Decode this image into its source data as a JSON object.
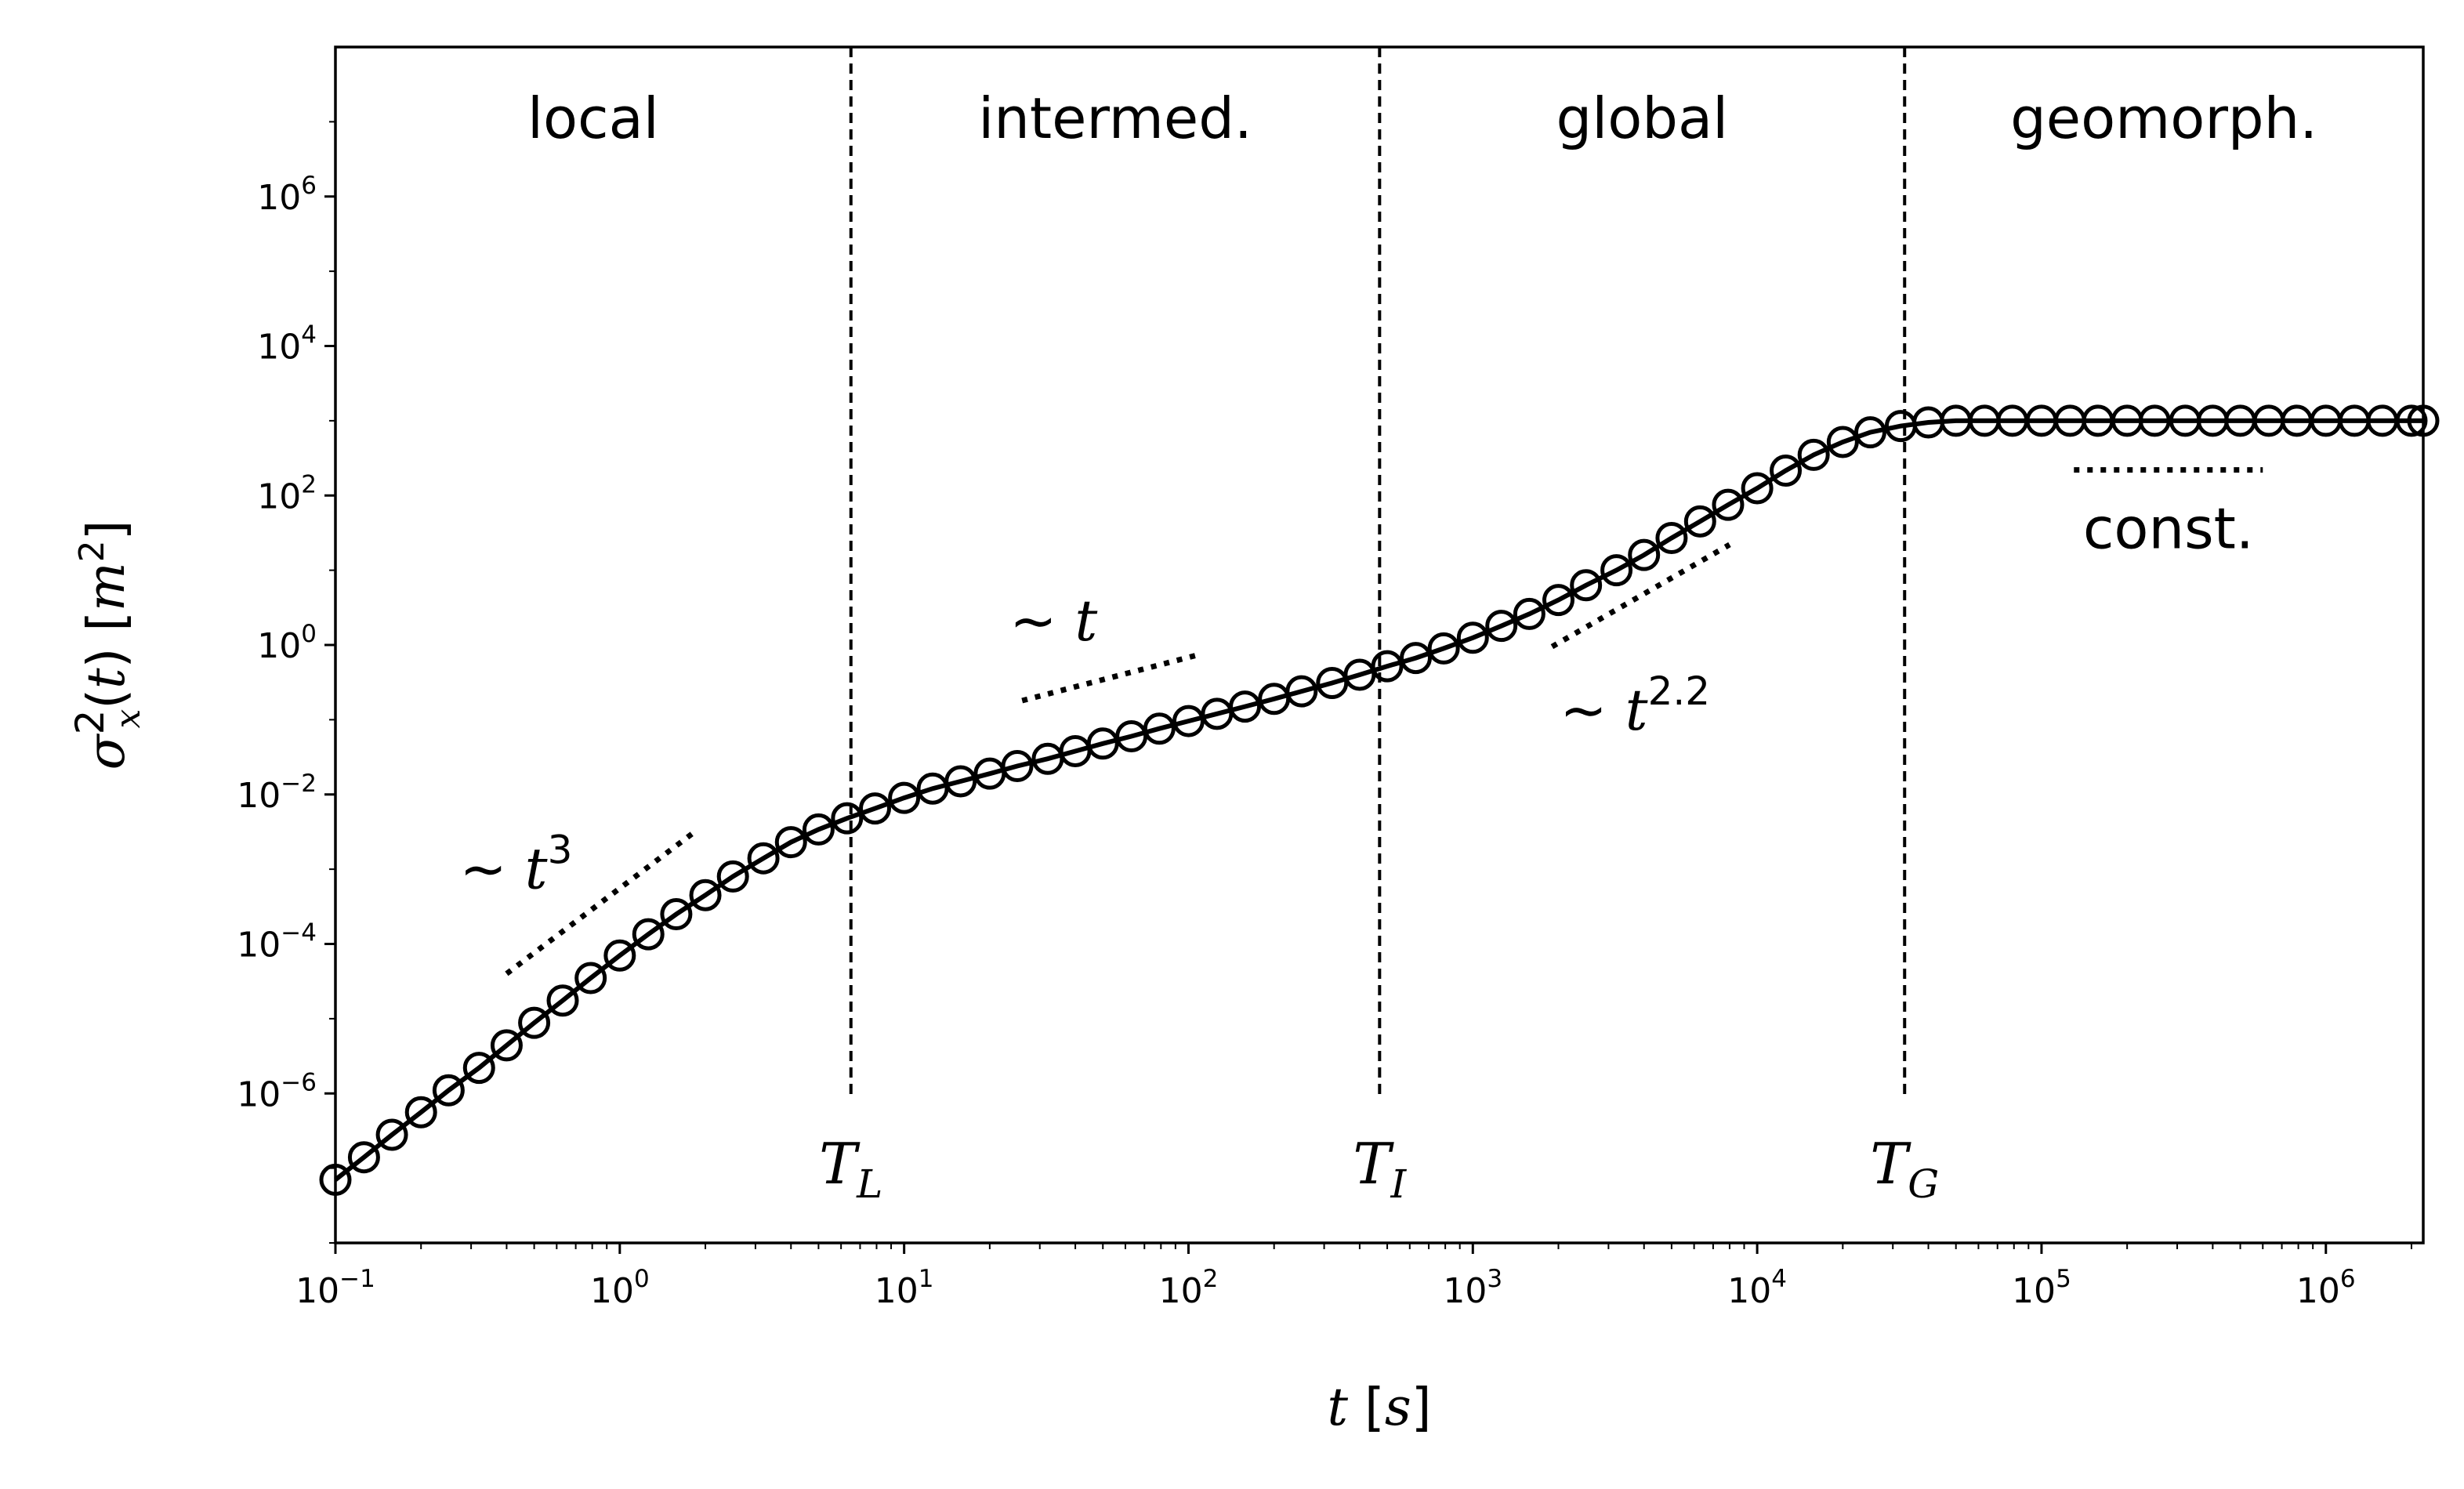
{
  "chart_data": {
    "type": "scatter",
    "x_scale": "log",
    "y_scale": "log",
    "xlim": [
      0.1,
      2200000
    ],
    "ylim": [
      1e-08,
      100000000.0
    ],
    "xticks": [
      {
        "base": "10",
        "exp": "−1"
      },
      {
        "base": "10",
        "exp": "0"
      },
      {
        "base": "10",
        "exp": "1"
      },
      {
        "base": "10",
        "exp": "2"
      },
      {
        "base": "10",
        "exp": "3"
      },
      {
        "base": "10",
        "exp": "4"
      },
      {
        "base": "10",
        "exp": "5"
      },
      {
        "base": "10",
        "exp": "6"
      }
    ],
    "xtick_values": [
      0.1,
      1,
      10,
      100,
      1000,
      10000,
      100000,
      1000000
    ],
    "yticks": [
      {
        "base": "10",
        "exp": "−6"
      },
      {
        "base": "10",
        "exp": "−4"
      },
      {
        "base": "10",
        "exp": "−2"
      },
      {
        "base": "10",
        "exp": "0"
      },
      {
        "base": "10",
        "exp": "2"
      },
      {
        "base": "10",
        "exp": "4"
      },
      {
        "base": "10",
        "exp": "6"
      }
    ],
    "ytick_values": [
      1e-06,
      0.0001,
      0.01,
      1,
      100,
      10000,
      1000000
    ],
    "xlabel": {
      "var": "t",
      "unit": "s"
    },
    "ylabel": {
      "var": "σ",
      "sup": "2",
      "sub": "x",
      "arg": "(t)",
      "unit": "m",
      "unit_sup": "2"
    },
    "grid": false,
    "regions": [
      {
        "label": "local"
      },
      {
        "label": "intermed."
      },
      {
        "label": "global"
      },
      {
        "label": "geomorph."
      }
    ],
    "vlines": [
      {
        "x": 6.5,
        "label_main": "T",
        "label_sub": "L"
      },
      {
        "x": 470,
        "label_main": "T",
        "label_sub": "I"
      },
      {
        "x": 33000,
        "label_main": "T",
        "label_sub": "G"
      }
    ],
    "series": [
      {
        "style": "solid-line-with-open-circles",
        "x": [
          0.1,
          0.126,
          0.158,
          0.2,
          0.25,
          0.32,
          0.4,
          0.5,
          0.63,
          0.79,
          1.0,
          1.26,
          1.58,
          2.0,
          2.5,
          3.2,
          4.0,
          5.0,
          6.3,
          7.9,
          10,
          12.6,
          15.8,
          20,
          25,
          32,
          40,
          50,
          63,
          79,
          100,
          126,
          158,
          200,
          250,
          320,
          400,
          500,
          630,
          790,
          1000,
          1260,
          1580,
          2000,
          2500,
          3200,
          4000,
          5000,
          6300,
          7900,
          10000,
          12600,
          15800,
          20000,
          25000,
          32000,
          40000,
          50000,
          63000,
          79000,
          100000,
          126000,
          158000,
          200000,
          250000,
          320000,
          400000,
          500000,
          630000,
          790000,
          1000000,
          1260000,
          1580000,
          2000000,
          2200000
        ],
        "y": [
          7e-08,
          1.4e-07,
          2.8e-07,
          5.6e-07,
          1.1e-06,
          2.2e-06,
          4.4e-06,
          8.8e-06,
          1.75e-05,
          3.5e-05,
          7e-05,
          0.000135,
          0.00025,
          0.00045,
          0.0008,
          0.0014,
          0.0023,
          0.0034,
          0.0048,
          0.0065,
          0.009,
          0.012,
          0.015,
          0.019,
          0.024,
          0.03,
          0.038,
          0.048,
          0.06,
          0.076,
          0.096,
          0.12,
          0.15,
          0.19,
          0.24,
          0.31,
          0.4,
          0.52,
          0.67,
          0.9,
          1.25,
          1.8,
          2.6,
          4.0,
          6.3,
          10,
          16,
          27,
          45,
          75,
          125,
          215,
          350,
          520,
          700,
          850,
          950,
          1000,
          1000,
          1000,
          1000,
          1000,
          1000,
          1000,
          1000,
          1000,
          1000,
          1000,
          1000,
          1000,
          1000,
          1000,
          1000,
          1000,
          1000
        ]
      }
    ],
    "scaling_guides": [
      {
        "x": [
          0.4,
          1.8
        ],
        "y": [
          4e-05,
          0.003
        ],
        "label": "∼ t",
        "label_sup": "3"
      },
      {
        "x": [
          26,
          110
        ],
        "y": [
          0.18,
          0.75
        ],
        "label": "∼ t",
        "label_sup": ""
      },
      {
        "x": [
          1900,
          8000
        ],
        "y": [
          0.95,
          22
        ],
        "label": "∼ t",
        "label_sup": "2.2"
      },
      {
        "x": [
          130000,
          600000
        ],
        "y": [
          220,
          220
        ],
        "label": "const.",
        "label_sup": ""
      }
    ]
  }
}
